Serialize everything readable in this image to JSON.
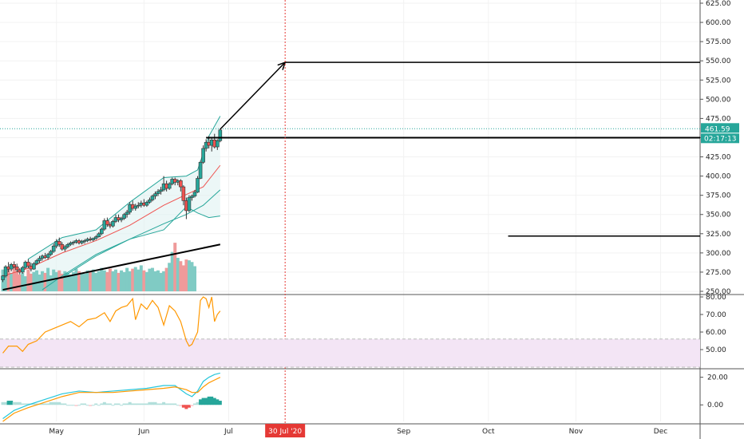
{
  "chart_data": {
    "type": "candlestick",
    "colors": {
      "up": "#26a69a",
      "down": "#ef5350",
      "vol_up": "#80cbc4",
      "vol_down": "#ef9a9a",
      "bb_upper": "#26a69a",
      "bb_lower": "#26a69a",
      "bb_fill": "#e0f2f1",
      "ma_red": "#ef5350",
      "ma_teal": "#26a69a",
      "rsi_line": "#ff9800",
      "rsi_band": "#f3e5f5",
      "macd_line": "#26c6da",
      "signal_line": "#ff9800",
      "crosshair": "#e53935",
      "price_tag": "#26a69a"
    },
    "price_axis": {
      "ticks": [
        "625.00",
        "600.00",
        "575.00",
        "550.00",
        "525.00",
        "500.00",
        "475.00",
        "450.00",
        "425.00",
        "400.00",
        "375.00",
        "350.00",
        "325.00",
        "300.00",
        "275.00",
        "250.00"
      ],
      "min": 250,
      "max": 625
    },
    "rsi_axis": {
      "ticks": [
        "80.00",
        "70.00",
        "60.00",
        "50.00"
      ],
      "min": 40,
      "max": 80,
      "band": [
        40,
        56
      ]
    },
    "macd_axis": {
      "ticks": [
        "20.00",
        "0.00"
      ],
      "min": -12,
      "max": 25
    },
    "x_axis": {
      "labels": [
        "May",
        "Jun",
        "Jul",
        "Sep",
        "Oct",
        "Nov",
        "Dec"
      ],
      "label_days": [
        10,
        41,
        71,
        133,
        163,
        194,
        224
      ],
      "crosshair_label": "30 Jul '20",
      "crosshair_day": 91,
      "day_range": [
        -10,
        238
      ]
    },
    "price_tag": "461.59",
    "countdown": "02:17:13",
    "candles": [
      [
        -9,
        265,
        271,
        262,
        270
      ],
      [
        -8,
        270,
        284,
        268,
        282
      ],
      [
        -7,
        282,
        288,
        275,
        279
      ],
      [
        -6,
        279,
        287,
        276,
        285
      ],
      [
        -5,
        285,
        289,
        280,
        282
      ],
      [
        -4,
        282,
        286,
        275,
        278
      ],
      [
        -3,
        278,
        280,
        272,
        275
      ],
      [
        -2,
        275,
        283,
        273,
        281
      ],
      [
        -1,
        281,
        290,
        279,
        288
      ],
      [
        0,
        288,
        292,
        280,
        283
      ],
      [
        1,
        283,
        287,
        276,
        279
      ],
      [
        2,
        279,
        288,
        278,
        286
      ],
      [
        3,
        286,
        292,
        284,
        290
      ],
      [
        4,
        290,
        296,
        287,
        293
      ],
      [
        5,
        293,
        298,
        290,
        296
      ],
      [
        6,
        296,
        300,
        292,
        294
      ],
      [
        7,
        294,
        300,
        291,
        298
      ],
      [
        8,
        298,
        304,
        296,
        302
      ],
      [
        9,
        302,
        312,
        300,
        309
      ],
      [
        10,
        309,
        318,
        306,
        315
      ],
      [
        11,
        315,
        320,
        308,
        311
      ],
      [
        12,
        311,
        314,
        303,
        305
      ],
      [
        13,
        305,
        310,
        302,
        308
      ],
      [
        14,
        308,
        313,
        306,
        311
      ],
      [
        15,
        311,
        315,
        309,
        313
      ],
      [
        16,
        313,
        316,
        310,
        314
      ],
      [
        17,
        314,
        318,
        312,
        316
      ],
      [
        18,
        316,
        318,
        311,
        313
      ],
      [
        19,
        313,
        317,
        311,
        315
      ],
      [
        20,
        315,
        318,
        312,
        316
      ],
      [
        21,
        316,
        320,
        314,
        318
      ],
      [
        22,
        318,
        321,
        315,
        317
      ],
      [
        23,
        317,
        320,
        315,
        319
      ],
      [
        24,
        319,
        323,
        317,
        321
      ],
      [
        25,
        321,
        327,
        320,
        325
      ],
      [
        26,
        325,
        333,
        323,
        331
      ],
      [
        27,
        331,
        345,
        329,
        342
      ],
      [
        28,
        342,
        346,
        334,
        337
      ],
      [
        29,
        337,
        340,
        332,
        335
      ],
      [
        30,
        335,
        343,
        333,
        341
      ],
      [
        31,
        341,
        350,
        339,
        346
      ],
      [
        32,
        346,
        350,
        340,
        343
      ],
      [
        33,
        343,
        347,
        340,
        345
      ],
      [
        34,
        345,
        352,
        343,
        350
      ],
      [
        35,
        350,
        356,
        346,
        353
      ],
      [
        36,
        353,
        366,
        350,
        363
      ],
      [
        37,
        363,
        368,
        355,
        358
      ],
      [
        38,
        358,
        364,
        355,
        361
      ],
      [
        39,
        361,
        366,
        358,
        362
      ],
      [
        40,
        362,
        368,
        359,
        365
      ],
      [
        41,
        365,
        370,
        360,
        362
      ],
      [
        42,
        362,
        368,
        360,
        366
      ],
      [
        43,
        366,
        372,
        364,
        369
      ],
      [
        44,
        369,
        376,
        367,
        374
      ],
      [
        45,
        374,
        380,
        370,
        377
      ],
      [
        46,
        377,
        383,
        374,
        380
      ],
      [
        47,
        380,
        386,
        376,
        382
      ],
      [
        48,
        382,
        400,
        380,
        390
      ],
      [
        49,
        390,
        394,
        380,
        384
      ],
      [
        50,
        384,
        392,
        382,
        390
      ],
      [
        51,
        390,
        398,
        388,
        396
      ],
      [
        52,
        396,
        398,
        388,
        392
      ],
      [
        53,
        392,
        396,
        388,
        394
      ],
      [
        54,
        394,
        396,
        380,
        386
      ],
      [
        55,
        386,
        388,
        362,
        368
      ],
      [
        56,
        368,
        372,
        344,
        355
      ],
      [
        57,
        355,
        375,
        353,
        372
      ],
      [
        58,
        372,
        376,
        368,
        374
      ],
      [
        59,
        374,
        382,
        372,
        379
      ],
      [
        60,
        379,
        400,
        378,
        397
      ],
      [
        61,
        397,
        420,
        396,
        418
      ],
      [
        62,
        418,
        440,
        416,
        436
      ],
      [
        63,
        436,
        448,
        432,
        444
      ],
      [
        64,
        444,
        452,
        436,
        440
      ],
      [
        65,
        440,
        450,
        432,
        447
      ],
      [
        66,
        447,
        455,
        436,
        438
      ],
      [
        67,
        438,
        448,
        434,
        446
      ],
      [
        68,
        446,
        462,
        444,
        460
      ]
    ],
    "volume": [
      26,
      25,
      28,
      22,
      30,
      24,
      20,
      22,
      18,
      26,
      21,
      23,
      25,
      20,
      24,
      22,
      28,
      19,
      26,
      23,
      25,
      21,
      24,
      22,
      20,
      23,
      27,
      24,
      22,
      21,
      25,
      23,
      26,
      22,
      24,
      28,
      25,
      23,
      27,
      24,
      26,
      22,
      25,
      23,
      28,
      24,
      27,
      29,
      26,
      31,
      25,
      23,
      27,
      28,
      24,
      25,
      22,
      24,
      28,
      34,
      47,
      58,
      40,
      36,
      31,
      38,
      37,
      35,
      30
    ],
    "bb_upper": [
      [
        0,
        292
      ],
      [
        12,
        320
      ],
      [
        24,
        330
      ],
      [
        36,
        366
      ],
      [
        48,
        398
      ],
      [
        56,
        400
      ],
      [
        60,
        408
      ],
      [
        64,
        452
      ],
      [
        68,
        478
      ]
    ],
    "bb_lower": [
      [
        0,
        258
      ],
      [
        12,
        268
      ],
      [
        24,
        296
      ],
      [
        36,
        318
      ],
      [
        48,
        330
      ],
      [
        56,
        360
      ],
      [
        60,
        352
      ],
      [
        64,
        346
      ],
      [
        68,
        348
      ]
    ],
    "ma_red": [
      [
        -9,
        270
      ],
      [
        0,
        280
      ],
      [
        12,
        300
      ],
      [
        24,
        316
      ],
      [
        36,
        336
      ],
      [
        48,
        362
      ],
      [
        56,
        376
      ],
      [
        62,
        386
      ],
      [
        68,
        414
      ]
    ],
    "ma_teal": [
      [
        5,
        252
      ],
      [
        12,
        270
      ],
      [
        24,
        298
      ],
      [
        36,
        318
      ],
      [
        48,
        338
      ],
      [
        56,
        350
      ],
      [
        62,
        362
      ],
      [
        68,
        382
      ]
    ],
    "trendline": [
      [
        -9,
        252
      ],
      [
        68,
        311
      ]
    ],
    "arrow": [
      [
        68,
        461
      ],
      [
        91,
        548
      ]
    ],
    "hline_550": [
      [
        91,
        548
      ],
      [
        238,
        548
      ]
    ],
    "hline_450": [
      [
        63,
        450
      ],
      [
        238,
        450
      ]
    ],
    "hline_322": [
      [
        170,
        322
      ],
      [
        238,
        322
      ]
    ],
    "rsi": [
      [
        -9,
        48
      ],
      [
        -7,
        52
      ],
      [
        -4,
        52
      ],
      [
        -2,
        49
      ],
      [
        0,
        53
      ],
      [
        3,
        55
      ],
      [
        6,
        60
      ],
      [
        9,
        62
      ],
      [
        12,
        64
      ],
      [
        15,
        66
      ],
      [
        18,
        63
      ],
      [
        21,
        67
      ],
      [
        24,
        68
      ],
      [
        27,
        71
      ],
      [
        29,
        66
      ],
      [
        31,
        72
      ],
      [
        33,
        74
      ],
      [
        35,
        75
      ],
      [
        37,
        79
      ],
      [
        38,
        67
      ],
      [
        40,
        76
      ],
      [
        42,
        73
      ],
      [
        44,
        78
      ],
      [
        46,
        74
      ],
      [
        48,
        64
      ],
      [
        50,
        75
      ],
      [
        52,
        72
      ],
      [
        54,
        66
      ],
      [
        56,
        55
      ],
      [
        57,
        52
      ],
      [
        58,
        53
      ],
      [
        60,
        60
      ],
      [
        61,
        78
      ],
      [
        62,
        80
      ],
      [
        63,
        79
      ],
      [
        64,
        74
      ],
      [
        65,
        80
      ],
      [
        66,
        66
      ],
      [
        67,
        70
      ],
      [
        68,
        72
      ]
    ],
    "macd": [
      [
        -9,
        -10
      ],
      [
        -5,
        -4
      ],
      [
        0,
        0
      ],
      [
        6,
        4
      ],
      [
        12,
        8
      ],
      [
        18,
        10
      ],
      [
        24,
        9
      ],
      [
        30,
        10
      ],
      [
        36,
        11
      ],
      [
        42,
        12
      ],
      [
        48,
        14
      ],
      [
        52,
        14
      ],
      [
        56,
        8
      ],
      [
        58,
        6
      ],
      [
        60,
        10
      ],
      [
        62,
        17
      ],
      [
        64,
        20
      ],
      [
        66,
        22
      ],
      [
        68,
        23
      ]
    ],
    "signal": [
      [
        -9,
        -12
      ],
      [
        -5,
        -6
      ],
      [
        0,
        -2
      ],
      [
        6,
        2
      ],
      [
        12,
        6
      ],
      [
        18,
        9
      ],
      [
        24,
        9
      ],
      [
        30,
        9
      ],
      [
        36,
        10
      ],
      [
        42,
        11
      ],
      [
        48,
        12
      ],
      [
        52,
        13
      ],
      [
        56,
        11
      ],
      [
        58,
        9
      ],
      [
        60,
        9
      ],
      [
        62,
        13
      ],
      [
        64,
        16
      ],
      [
        66,
        18
      ],
      [
        68,
        20
      ]
    ],
    "hist": [
      [
        -9,
        2
      ],
      [
        -8,
        2
      ],
      [
        -7,
        3
      ],
      [
        -6,
        3
      ],
      [
        -5,
        2
      ],
      [
        -4,
        2
      ],
      [
        -3,
        2
      ],
      [
        -2,
        1
      ],
      [
        -1,
        1
      ],
      [
        0,
        1
      ],
      [
        1,
        1
      ],
      [
        2,
        1
      ],
      [
        3,
        1
      ],
      [
        4,
        1
      ],
      [
        5,
        1
      ],
      [
        6,
        1
      ],
      [
        7,
        1
      ],
      [
        8,
        2
      ],
      [
        9,
        2
      ],
      [
        10,
        2
      ],
      [
        11,
        2
      ],
      [
        12,
        1
      ],
      [
        13,
        1
      ],
      [
        14,
        0
      ],
      [
        15,
        0
      ],
      [
        16,
        0
      ],
      [
        17,
        -1
      ],
      [
        18,
        0
      ],
      [
        19,
        1
      ],
      [
        20,
        1
      ],
      [
        21,
        0
      ],
      [
        22,
        -1
      ],
      [
        23,
        0
      ],
      [
        24,
        1
      ],
      [
        25,
        0
      ],
      [
        26,
        1
      ],
      [
        27,
        2
      ],
      [
        28,
        1
      ],
      [
        29,
        1
      ],
      [
        30,
        0
      ],
      [
        31,
        1
      ],
      [
        32,
        1
      ],
      [
        33,
        0
      ],
      [
        34,
        1
      ],
      [
        35,
        1
      ],
      [
        36,
        2
      ],
      [
        37,
        1
      ],
      [
        38,
        1
      ],
      [
        39,
        1
      ],
      [
        40,
        1
      ],
      [
        41,
        1
      ],
      [
        42,
        1
      ],
      [
        43,
        2
      ],
      [
        44,
        2
      ],
      [
        45,
        2
      ],
      [
        46,
        1
      ],
      [
        47,
        1
      ],
      [
        48,
        2
      ],
      [
        49,
        1
      ],
      [
        50,
        1
      ],
      [
        51,
        1
      ],
      [
        52,
        1
      ],
      [
        53,
        0
      ],
      [
        54,
        -1
      ],
      [
        55,
        -2
      ],
      [
        56,
        -3
      ],
      [
        57,
        -2
      ],
      [
        58,
        -1
      ],
      [
        59,
        1
      ],
      [
        60,
        2
      ],
      [
        61,
        4
      ],
      [
        62,
        5
      ],
      [
        63,
        5
      ],
      [
        64,
        6
      ],
      [
        65,
        6
      ],
      [
        66,
        5
      ],
      [
        67,
        4
      ],
      [
        68,
        3
      ]
    ]
  }
}
